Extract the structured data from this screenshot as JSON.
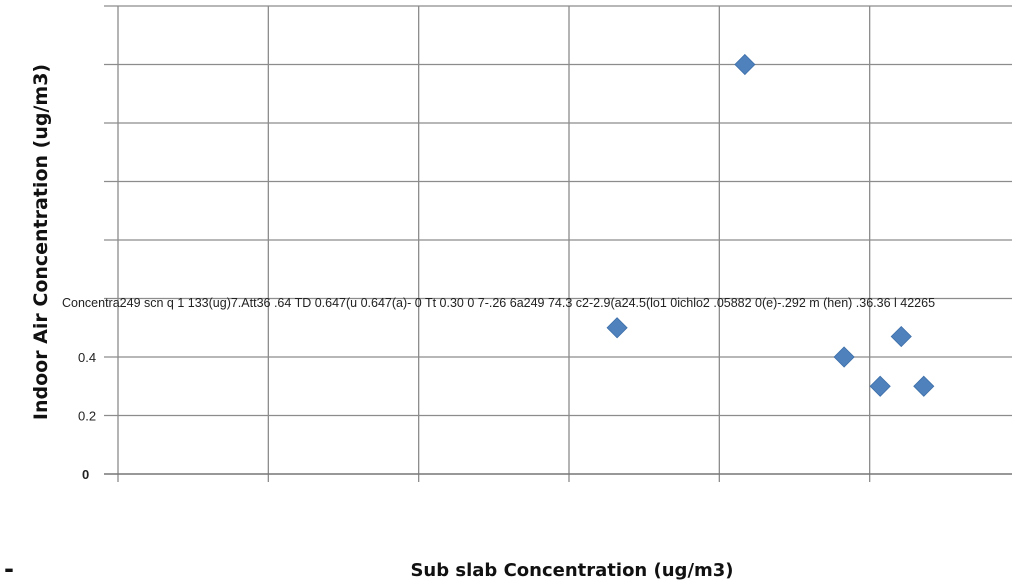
{
  "chart_data": {
    "type": "scatter",
    "xlabel": "Sub slab Concentration (ug/m3)",
    "ylabel": "Indoor Air Concentration (ug/m3)",
    "y_tick_labels": [
      "0",
      "0.2",
      "0.4"
    ],
    "xlim": [
      0,
      6
    ],
    "ylim": [
      0,
      1.6
    ],
    "grid": true,
    "legend": "none",
    "overlay_text": "Concentra249 scn q 1 133(ug)7.Att36 .64 TD 0.647(u 0.647(a)- 0 Tt 0.30  0 7-.26 6a249 74.3 c2-2.9(a24.5(lo1 0ichlo2 .05882 0(e)-.292  m (hen) .36.36 l 42265",
    "stray_mark": "-",
    "marker_color": "#4f81bd",
    "points": [
      {
        "x": 3.32,
        "y": 0.5
      },
      {
        "x": 4.17,
        "y": 1.4
      },
      {
        "x": 4.83,
        "y": 0.4
      },
      {
        "x": 5.07,
        "y": 0.3
      },
      {
        "x": 5.21,
        "y": 0.47
      },
      {
        "x": 5.36,
        "y": 0.3
      }
    ]
  }
}
